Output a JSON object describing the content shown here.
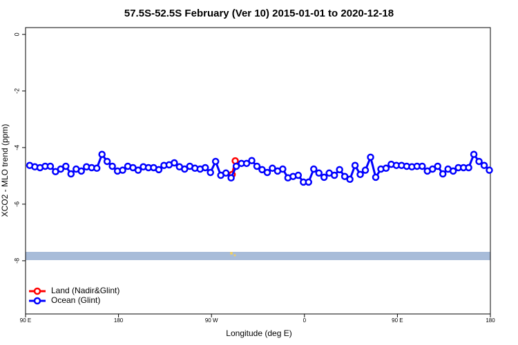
{
  "chart_data": {
    "type": "line",
    "title": "57.5S-52.5S February (Ver 10)   2015-01-01 to 2020-12-18",
    "x_label": "Longitude (deg E)",
    "y_label": "XCO2 - MLO trend (ppm)",
    "xlim": [
      90,
      540
    ],
    "ylim": [
      -9.88,
      0.24
    ],
    "xticks": [
      {
        "value": 90,
        "label": "90 E"
      },
      180,
      {
        "value": 270,
        "label": "90 W"
      },
      {
        "value": 360,
        "label": "0"
      },
      {
        "value": 450,
        "label": "90 E"
      },
      {
        "value": 540,
        "label": "180"
      }
    ],
    "yticks": [
      0,
      -2,
      -4,
      -6,
      -8
    ],
    "legend": "bottom-left",
    "series": [
      {
        "name": "Land (Nadir&Glint)",
        "color": "#ff0000",
        "x": [
          290,
          293
        ],
        "values": [
          -4.95,
          -4.47
        ]
      },
      {
        "name": "Ocean (Glint)",
        "color": "#0000ff",
        "x": [
          94,
          99,
          104,
          109,
          114,
          119,
          124,
          129,
          134,
          139,
          144,
          149,
          154,
          159,
          164,
          169,
          174,
          179,
          184,
          189,
          194,
          199,
          204,
          209,
          214,
          219,
          224,
          229,
          234,
          239,
          244,
          249,
          254,
          259,
          264,
          269,
          274,
          279,
          284,
          289,
          294,
          299,
          304,
          309,
          314,
          319,
          324,
          329,
          334,
          339,
          344,
          349,
          354,
          359,
          364,
          369,
          374,
          379,
          384,
          389,
          394,
          399,
          404,
          409,
          414,
          419,
          424,
          429,
          434,
          439,
          444,
          449,
          454,
          459,
          464,
          469,
          474,
          479,
          484,
          489,
          494,
          499,
          504,
          509,
          514,
          519,
          524,
          529,
          534,
          539
        ],
        "values": [
          -4.63,
          -4.68,
          -4.71,
          -4.66,
          -4.66,
          -4.85,
          -4.76,
          -4.66,
          -4.93,
          -4.76,
          -4.83,
          -4.68,
          -4.71,
          -4.73,
          -4.24,
          -4.49,
          -4.66,
          -4.83,
          -4.8,
          -4.66,
          -4.71,
          -4.8,
          -4.68,
          -4.71,
          -4.71,
          -4.78,
          -4.63,
          -4.61,
          -4.54,
          -4.68,
          -4.76,
          -4.66,
          -4.73,
          -4.76,
          -4.71,
          -4.88,
          -4.49,
          -4.98,
          -4.9,
          -5.07,
          -4.66,
          -4.56,
          -4.56,
          -4.46,
          -4.66,
          -4.78,
          -4.88,
          -4.73,
          -4.83,
          -4.76,
          -5.07,
          -5.02,
          -4.98,
          -5.22,
          -5.22,
          -4.76,
          -4.9,
          -5.05,
          -4.9,
          -4.98,
          -4.78,
          -5.02,
          -5.12,
          -4.63,
          -4.95,
          -4.8,
          -4.34,
          -5.05,
          -4.76,
          -4.73,
          -4.59,
          -4.63,
          -4.63,
          -4.66,
          -4.68,
          -4.66,
          -4.66,
          -4.83,
          -4.76,
          -4.66,
          -4.93,
          -4.76,
          -4.83,
          -4.71,
          -4.71,
          -4.71,
          -4.24,
          -4.49,
          -4.63,
          -4.8
        ]
      }
    ]
  }
}
